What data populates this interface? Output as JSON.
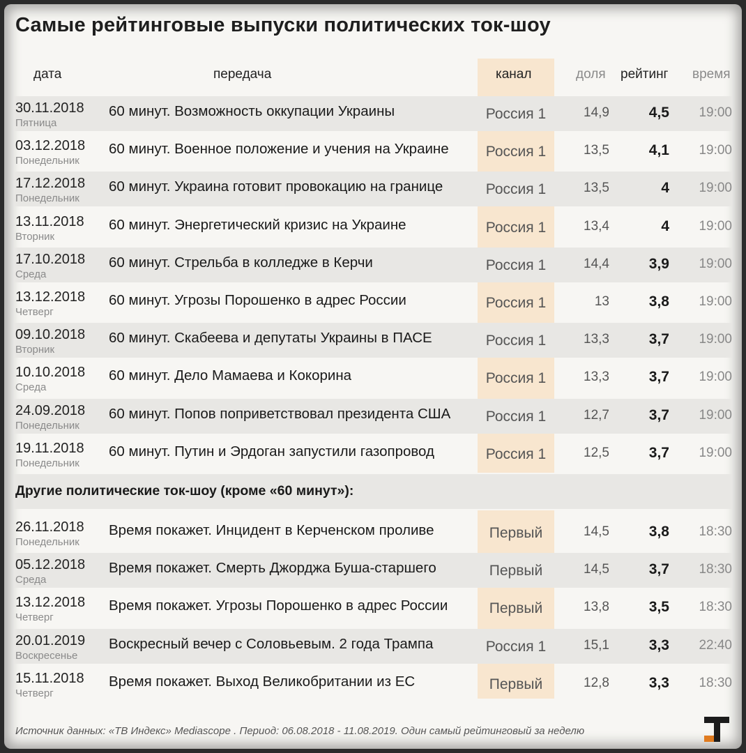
{
  "title": "Самые рейтинговые выпуски политических ток-шоу",
  "headers": {
    "date": "дата",
    "show": "передача",
    "channel": "канал",
    "share": "доля",
    "rating": "рейтинг",
    "time": "время"
  },
  "top_rows": [
    {
      "date": "30.11.2018",
      "day": "Пятница",
      "show": "60 минут. Возможность оккупации Украины",
      "channel": "Россия 1",
      "share": "14,9",
      "rating": "4,5",
      "time": "19:00"
    },
    {
      "date": "03.12.2018",
      "day": "Понедельник",
      "show": "60 минут. Военное положение и учения на Украине",
      "channel": "Россия 1",
      "share": "13,5",
      "rating": "4,1",
      "time": "19:00"
    },
    {
      "date": "17.12.2018",
      "day": "Понедельник",
      "show": "60 минут. Украина готовит провокацию на границе",
      "channel": "Россия 1",
      "share": "13,5",
      "rating": "4",
      "time": "19:00"
    },
    {
      "date": "13.11.2018",
      "day": "Вторник",
      "show": "60 минут. Энергетический кризис на Украине",
      "channel": "Россия 1",
      "share": "13,4",
      "rating": "4",
      "time": "19:00"
    },
    {
      "date": "17.10.2018",
      "day": "Среда",
      "show": "60 минут. Стрельба в колледже в Керчи",
      "channel": "Россия 1",
      "share": "14,4",
      "rating": "3,9",
      "time": "19:00"
    },
    {
      "date": "13.12.2018",
      "day": "Четверг",
      "show": "60 минут. Угрозы Порошенко в адрес России",
      "channel": "Россия 1",
      "share": "13",
      "rating": "3,8",
      "time": "19:00"
    },
    {
      "date": "09.10.2018",
      "day": "Вторник",
      "show": "60 минут. Скабеева и депутаты Украины в ПАСЕ",
      "channel": "Россия 1",
      "share": "13,3",
      "rating": "3,7",
      "time": "19:00"
    },
    {
      "date": "10.10.2018",
      "day": "Среда",
      "show": "60 минут. Дело Мамаева и Кокорина",
      "channel": "Россия 1",
      "share": "13,3",
      "rating": "3,7",
      "time": "19:00"
    },
    {
      "date": "24.09.2018",
      "day": "Понедельник",
      "show": "60 минут. Попов поприветствовал президента США",
      "channel": "Россия 1",
      "share": "12,7",
      "rating": "3,7",
      "time": "19:00"
    },
    {
      "date": "19.11.2018",
      "day": "Понедельник",
      "show": "60 минут. Путин и Эрдоган запустили газопровод",
      "channel": "Россия 1",
      "share": "12,5",
      "rating": "3,7",
      "time": "19:00"
    }
  ],
  "other_section_title": "Другие политические ток-шоу (кроме «60 минут»):",
  "other_rows": [
    {
      "date": "26.11.2018",
      "day": "Понедельник",
      "show": "Время покажет. Инцидент в Керченском проливе",
      "channel": "Первый",
      "share": "14,5",
      "rating": "3,8",
      "time": "18:30"
    },
    {
      "date": "05.12.2018",
      "day": "Среда",
      "show": "Время покажет. Смерть Джорджа Буша-старшего",
      "channel": "Первый",
      "share": "14,5",
      "rating": "3,7",
      "time": "18:30"
    },
    {
      "date": "13.12.2018",
      "day": "Четверг",
      "show": "Время покажет. Угрозы Порошенко в адрес России",
      "channel": "Первый",
      "share": "13,8",
      "rating": "3,5",
      "time": "18:30"
    },
    {
      "date": "20.01.2019",
      "day": "Воскресенье",
      "show": "Воскресный вечер с Соловьевым. 2 года Трампа",
      "channel": "Россия 1",
      "share": "15,1",
      "rating": "3,3",
      "time": "22:40"
    },
    {
      "date": "15.11.2018",
      "day": "Четверг",
      "show": "Время покажет. Выход Великобритании из ЕС",
      "channel": "Первый",
      "share": "12,8",
      "rating": "3,3",
      "time": "18:30"
    }
  ],
  "footer": "Источник данных: «ТВ Индекс» Mediascope . Период: 06.08.2018 - 11.08.2019. Один самый рейтинговый за неделю",
  "colors": {
    "channel_band": "#f8e6cf",
    "row_shade": "#e8e7e4",
    "logo_orange": "#e07b1f"
  },
  "logo_icon": "publisher-logo-icon"
}
